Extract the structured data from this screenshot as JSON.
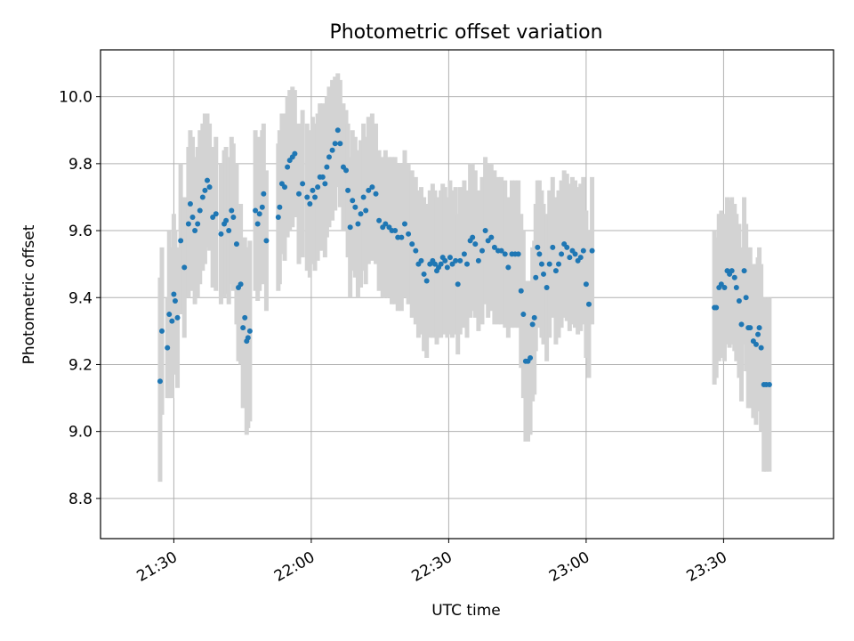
{
  "chart_data": {
    "type": "scatter",
    "title": "Photometric offset variation",
    "xlabel": "UTC time",
    "ylabel": "Photometric offset",
    "x_unit": "minutes after 21:00 UTC",
    "xlim": [
      14,
      174
    ],
    "ylim": [
      8.68,
      10.14
    ],
    "x_ticks": [
      {
        "value": 30,
        "label": "21:30"
      },
      {
        "value": 60,
        "label": "22:00"
      },
      {
        "value": 90,
        "label": "22:30"
      },
      {
        "value": 120,
        "label": "23:00"
      },
      {
        "value": 150,
        "label": "23:30"
      }
    ],
    "y_ticks": [
      {
        "value": 8.8,
        "label": "8.8"
      },
      {
        "value": 9.0,
        "label": "9.0"
      },
      {
        "value": 9.2,
        "label": "9.2"
      },
      {
        "value": 9.4,
        "label": "9.4"
      },
      {
        "value": 9.6,
        "label": "9.6"
      },
      {
        "value": 9.8,
        "label": "9.8"
      },
      {
        "value": 10.0,
        "label": "10.0"
      }
    ],
    "grid": true,
    "colors": {
      "points": "#1f77b4",
      "errorbars": "#d3d3d3"
    },
    "series": [
      {
        "points": [
          [
            27.0,
            9.15,
            9.46,
            8.85
          ],
          [
            27.4,
            9.3,
            9.55,
            9.05
          ],
          [
            28.6,
            9.25,
            9.4,
            9.1
          ],
          [
            29.0,
            9.35,
            9.6,
            9.1
          ],
          [
            29.6,
            9.33,
            9.55,
            9.1
          ],
          [
            30.0,
            9.41,
            9.65,
            9.17
          ],
          [
            30.3,
            9.39,
            9.6,
            9.18
          ],
          [
            30.8,
            9.34,
            9.55,
            9.13
          ],
          [
            31.5,
            9.57,
            9.8,
            9.35
          ],
          [
            32.3,
            9.49,
            9.7,
            9.28
          ],
          [
            33.2,
            9.62,
            9.85,
            9.4
          ],
          [
            33.6,
            9.68,
            9.9,
            9.46
          ],
          [
            34.1,
            9.64,
            9.88,
            9.42
          ],
          [
            34.6,
            9.6,
            9.82,
            9.38
          ],
          [
            35.2,
            9.62,
            9.85,
            9.4
          ],
          [
            35.7,
            9.66,
            9.9,
            9.44
          ],
          [
            36.3,
            9.7,
            9.92,
            9.48
          ],
          [
            36.8,
            9.72,
            9.95,
            9.5
          ],
          [
            37.3,
            9.75,
            9.95,
            9.55
          ],
          [
            37.8,
            9.73,
            9.92,
            9.54
          ],
          [
            38.5,
            9.64,
            9.85,
            9.43
          ],
          [
            39.2,
            9.65,
            9.88,
            9.42
          ],
          [
            40.3,
            9.59,
            9.8,
            9.38
          ],
          [
            41.0,
            9.62,
            9.84,
            9.4
          ],
          [
            41.4,
            9.63,
            9.85,
            9.41
          ],
          [
            42.0,
            9.6,
            9.82,
            9.38
          ],
          [
            42.6,
            9.66,
            9.88,
            9.44
          ],
          [
            43.0,
            9.64,
            9.86,
            9.42
          ],
          [
            43.7,
            9.56,
            9.8,
            9.32
          ],
          [
            44.1,
            9.43,
            9.65,
            9.21
          ],
          [
            44.6,
            9.44,
            9.68,
            9.2
          ],
          [
            45.1,
            9.31,
            9.55,
            9.07
          ],
          [
            45.5,
            9.34,
            9.58,
            9.1
          ],
          [
            45.9,
            9.27,
            9.55,
            8.99
          ],
          [
            46.2,
            9.28,
            9.55,
            9.01
          ],
          [
            46.6,
            9.3,
            9.57,
            9.03
          ],
          [
            47.8,
            9.66,
            9.9,
            9.42
          ],
          [
            48.3,
            9.62,
            9.85,
            9.39
          ],
          [
            48.7,
            9.65,
            9.88,
            9.42
          ],
          [
            49.3,
            9.67,
            9.9,
            9.44
          ],
          [
            49.6,
            9.71,
            9.92,
            9.5
          ],
          [
            50.2,
            9.57,
            9.78,
            9.36
          ],
          [
            52.8,
            9.64,
            9.86,
            9.42
          ],
          [
            53.1,
            9.67,
            9.9,
            9.44
          ],
          [
            53.6,
            9.74,
            9.95,
            9.53
          ],
          [
            54.2,
            9.73,
            9.95,
            9.51
          ],
          [
            54.8,
            9.79,
            10.0,
            9.58
          ],
          [
            55.3,
            9.81,
            10.02,
            9.6
          ],
          [
            55.9,
            9.82,
            10.03,
            9.61
          ],
          [
            56.4,
            9.83,
            10.02,
            9.64
          ],
          [
            57.3,
            9.71,
            9.92,
            9.5
          ],
          [
            58.1,
            9.74,
            9.96,
            9.52
          ],
          [
            59.1,
            9.7,
            9.92,
            9.48
          ],
          [
            59.7,
            9.68,
            9.9,
            9.46
          ],
          [
            60.3,
            9.72,
            9.94,
            9.5
          ],
          [
            60.8,
            9.7,
            9.92,
            9.48
          ],
          [
            61.4,
            9.73,
            9.95,
            9.51
          ],
          [
            61.9,
            9.76,
            9.98,
            9.54
          ],
          [
            62.5,
            9.76,
            9.98,
            9.54
          ],
          [
            63.0,
            9.74,
            9.96,
            9.52
          ],
          [
            63.4,
            9.79,
            10.0,
            9.58
          ],
          [
            63.9,
            9.82,
            10.03,
            9.61
          ],
          [
            64.6,
            9.84,
            10.05,
            9.63
          ],
          [
            65.2,
            9.86,
            10.06,
            9.66
          ],
          [
            65.8,
            9.9,
            10.07,
            9.73
          ],
          [
            66.3,
            9.86,
            10.05,
            9.67
          ],
          [
            67.0,
            9.79,
            9.98,
            9.6
          ],
          [
            67.6,
            9.78,
            9.96,
            9.6
          ],
          [
            68.0,
            9.72,
            9.92,
            9.52
          ],
          [
            68.5,
            9.61,
            9.82,
            9.4
          ],
          [
            69.0,
            9.69,
            9.9,
            9.48
          ],
          [
            69.6,
            9.67,
            9.88,
            9.46
          ],
          [
            70.2,
            9.62,
            9.84,
            9.4
          ],
          [
            70.8,
            9.65,
            9.87,
            9.43
          ],
          [
            71.4,
            9.7,
            9.92,
            9.48
          ],
          [
            71.9,
            9.66,
            9.88,
            9.44
          ],
          [
            72.5,
            9.72,
            9.94,
            9.5
          ],
          [
            73.3,
            9.73,
            9.95,
            9.51
          ],
          [
            74.1,
            9.71,
            9.92,
            9.5
          ],
          [
            74.8,
            9.63,
            9.84,
            9.42
          ],
          [
            75.6,
            9.61,
            9.82,
            9.4
          ],
          [
            76.2,
            9.62,
            9.84,
            9.4
          ],
          [
            77.0,
            9.61,
            9.82,
            9.4
          ],
          [
            77.6,
            9.6,
            9.82,
            9.38
          ],
          [
            78.3,
            9.6,
            9.82,
            9.38
          ],
          [
            78.9,
            9.58,
            9.8,
            9.36
          ],
          [
            79.7,
            9.58,
            9.8,
            9.36
          ],
          [
            80.4,
            9.62,
            9.84,
            9.4
          ],
          [
            81.2,
            9.59,
            9.8,
            9.38
          ],
          [
            82.0,
            9.56,
            9.78,
            9.34
          ],
          [
            82.8,
            9.54,
            9.76,
            9.32
          ],
          [
            83.4,
            9.5,
            9.72,
            9.28
          ],
          [
            84.0,
            9.51,
            9.73,
            9.29
          ],
          [
            84.6,
            9.47,
            9.7,
            9.24
          ],
          [
            85.2,
            9.45,
            9.68,
            9.22
          ],
          [
            85.9,
            9.5,
            9.72,
            9.28
          ],
          [
            86.5,
            9.51,
            9.74,
            9.28
          ],
          [
            87.0,
            9.5,
            9.72,
            9.28
          ],
          [
            87.4,
            9.48,
            9.7,
            9.26
          ],
          [
            87.8,
            9.49,
            9.7,
            9.28
          ],
          [
            88.3,
            9.5,
            9.72,
            9.28
          ],
          [
            88.7,
            9.52,
            9.74,
            9.3
          ],
          [
            89.2,
            9.51,
            9.73,
            9.29
          ],
          [
            89.7,
            9.49,
            9.7,
            9.28
          ],
          [
            90.3,
            9.52,
            9.75,
            9.29
          ],
          [
            90.8,
            9.5,
            9.72,
            9.28
          ],
          [
            91.5,
            9.51,
            9.73,
            9.29
          ],
          [
            92.0,
            9.44,
            9.65,
            9.23
          ],
          [
            92.5,
            9.51,
            9.73,
            9.29
          ],
          [
            93.4,
            9.53,
            9.75,
            9.31
          ],
          [
            94.0,
            9.5,
            9.72,
            9.28
          ],
          [
            94.7,
            9.57,
            9.8,
            9.34
          ],
          [
            95.2,
            9.58,
            9.8,
            9.36
          ],
          [
            95.8,
            9.56,
            9.78,
            9.34
          ],
          [
            96.5,
            9.51,
            9.72,
            9.3
          ],
          [
            97.3,
            9.54,
            9.76,
            9.32
          ],
          [
            98.0,
            9.6,
            9.82,
            9.38
          ],
          [
            98.6,
            9.57,
            9.8,
            9.34
          ],
          [
            99.3,
            9.58,
            9.8,
            9.36
          ],
          [
            100.0,
            9.55,
            9.78,
            9.32
          ],
          [
            100.8,
            9.54,
            9.76,
            9.32
          ],
          [
            101.5,
            9.54,
            9.76,
            9.32
          ],
          [
            102.3,
            9.53,
            9.75,
            9.31
          ],
          [
            103.0,
            9.49,
            9.7,
            9.28
          ],
          [
            103.8,
            9.53,
            9.75,
            9.31
          ],
          [
            104.5,
            9.53,
            9.75,
            9.31
          ],
          [
            105.2,
            9.53,
            9.75,
            9.31
          ],
          [
            105.8,
            9.42,
            9.65,
            9.19
          ],
          [
            106.3,
            9.35,
            9.6,
            9.1
          ],
          [
            106.8,
            9.21,
            9.45,
            8.97
          ],
          [
            107.3,
            9.21,
            9.45,
            8.97
          ],
          [
            107.8,
            9.22,
            9.45,
            8.99
          ],
          [
            108.3,
            9.32,
            9.55,
            9.09
          ],
          [
            108.7,
            9.34,
            9.57,
            9.11
          ],
          [
            109.0,
            9.46,
            9.68,
            9.24
          ],
          [
            109.4,
            9.55,
            9.75,
            9.35
          ],
          [
            109.8,
            9.53,
            9.75,
            9.31
          ],
          [
            110.3,
            9.5,
            9.72,
            9.28
          ],
          [
            110.7,
            9.47,
            9.68,
            9.26
          ],
          [
            111.4,
            9.43,
            9.65,
            9.21
          ],
          [
            112.0,
            9.5,
            9.72,
            9.28
          ],
          [
            112.7,
            9.55,
            9.76,
            9.34
          ],
          [
            113.4,
            9.48,
            9.7,
            9.26
          ],
          [
            114.0,
            9.5,
            9.72,
            9.28
          ],
          [
            114.6,
            9.53,
            9.75,
            9.31
          ],
          [
            115.2,
            9.56,
            9.78,
            9.34
          ],
          [
            115.8,
            9.55,
            9.77,
            9.33
          ],
          [
            116.4,
            9.52,
            9.74,
            9.3
          ],
          [
            117.0,
            9.54,
            9.76,
            9.32
          ],
          [
            117.6,
            9.53,
            9.75,
            9.31
          ],
          [
            118.2,
            9.51,
            9.73,
            9.29
          ],
          [
            118.8,
            9.52,
            9.74,
            9.3
          ],
          [
            119.4,
            9.54,
            9.76,
            9.32
          ],
          [
            120.0,
            9.44,
            9.66,
            9.22
          ],
          [
            120.6,
            9.38,
            9.6,
            9.16
          ],
          [
            121.3,
            9.54,
            9.76,
            9.32
          ]
        ]
      },
      {
        "points": [
          [
            148.0,
            9.37,
            9.6,
            9.14
          ],
          [
            148.4,
            9.37,
            9.58,
            9.16
          ],
          [
            149.0,
            9.43,
            9.65,
            9.21
          ],
          [
            149.5,
            9.44,
            9.66,
            9.22
          ],
          [
            150.2,
            9.43,
            9.65,
            9.21
          ],
          [
            150.8,
            9.48,
            9.7,
            9.26
          ],
          [
            151.3,
            9.47,
            9.69,
            9.25
          ],
          [
            151.8,
            9.48,
            9.7,
            9.26
          ],
          [
            152.4,
            9.46,
            9.68,
            9.24
          ],
          [
            152.8,
            9.43,
            9.65,
            9.21
          ],
          [
            153.4,
            9.39,
            9.62,
            9.16
          ],
          [
            153.9,
            9.32,
            9.55,
            9.09
          ],
          [
            154.5,
            9.48,
            9.7,
            9.26
          ],
          [
            154.9,
            9.4,
            9.62,
            9.18
          ],
          [
            155.4,
            9.31,
            9.55,
            9.07
          ],
          [
            155.8,
            9.31,
            9.55,
            9.07
          ],
          [
            156.5,
            9.27,
            9.5,
            9.04
          ],
          [
            157.1,
            9.26,
            9.5,
            9.02
          ],
          [
            157.5,
            9.29,
            9.52,
            9.06
          ],
          [
            157.8,
            9.31,
            9.55,
            9.07
          ],
          [
            158.2,
            9.25,
            9.5,
            9.0
          ],
          [
            158.8,
            9.14,
            9.4,
            8.88
          ],
          [
            159.3,
            9.14,
            9.4,
            8.88
          ],
          [
            160.0,
            9.14,
            9.4,
            8.88
          ]
        ]
      }
    ]
  }
}
